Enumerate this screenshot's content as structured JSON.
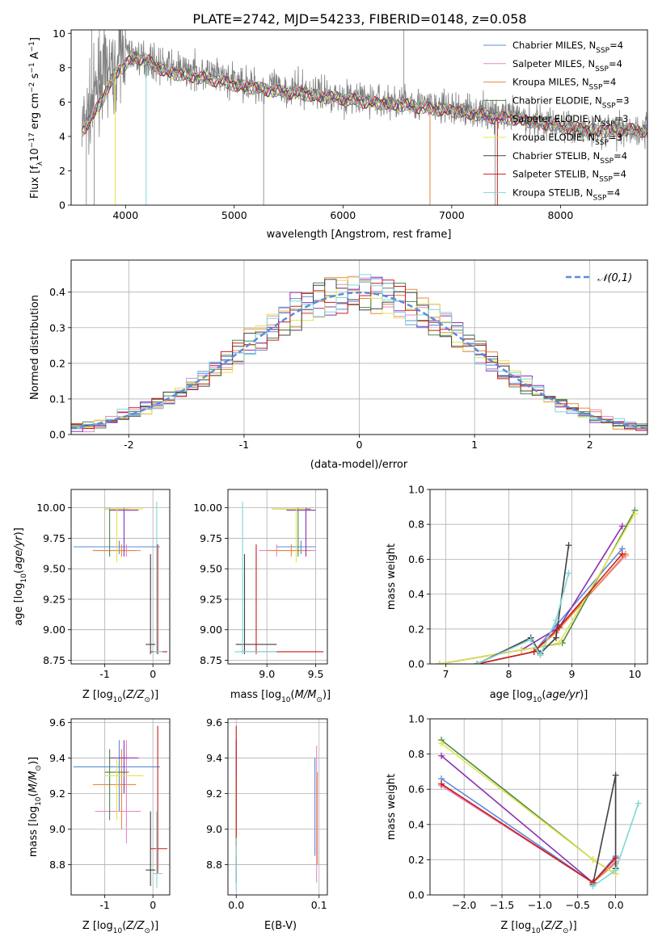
{
  "figure": {
    "title": "PLATE=2742, MJD=54233, FIBERID=0148, z=0.058"
  },
  "chart_data": [
    {
      "id": "spectrum",
      "type": "line",
      "xlabel": "wavelength [Angstrom, rest frame]",
      "ylabel": "Flux [f_λ 10^-17 erg cm^-2 s^-1 A^-1]",
      "xlim": [
        3500,
        8800
      ],
      "ylim": [
        0,
        10.2
      ],
      "xticks": [
        4000,
        5000,
        6000,
        7000,
        8000
      ],
      "yticks": [
        0,
        2,
        4,
        6,
        8,
        10
      ],
      "grid": false,
      "legend_position": "top-right",
      "observed": {
        "color": "#808080",
        "x": [
          3600,
          3650,
          3700,
          3750,
          3800,
          3850,
          3900,
          3950,
          4000,
          4100,
          4200,
          4300,
          4400,
          4500,
          4600,
          4700,
          4800,
          4900,
          5000,
          5200,
          5400,
          5600,
          5800,
          6000,
          6200,
          6400,
          6600,
          6800,
          7000,
          7200,
          7400,
          7600,
          7800,
          8000,
          8200,
          8400,
          8600,
          8800
        ],
        "y": [
          4.5,
          5.2,
          6.0,
          7.2,
          7.5,
          8.0,
          7.5,
          8.8,
          9.0,
          8.6,
          8.5,
          8.2,
          8.0,
          7.9,
          7.8,
          7.7,
          7.6,
          7.4,
          7.2,
          7.0,
          6.8,
          6.7,
          6.5,
          6.3,
          6.2,
          6.0,
          6.0,
          5.8,
          5.6,
          5.5,
          5.3,
          5.1,
          4.9,
          4.6,
          4.4,
          4.4,
          4.5,
          4.3
        ]
      },
      "model": {
        "x": [
          3600,
          3700,
          3800,
          3900,
          4000,
          4100,
          4200,
          4300,
          4400,
          4500,
          4600,
          4800,
          5000,
          5200,
          5400,
          5600,
          5800,
          6000,
          6200,
          6400,
          6600,
          6800,
          7000,
          7200,
          7400,
          7600,
          7800,
          8000,
          8200,
          8400,
          8600,
          8800
        ],
        "y": [
          4.3,
          5.2,
          6.3,
          7.6,
          8.2,
          8.6,
          8.4,
          8.0,
          7.7,
          7.6,
          7.5,
          7.3,
          7.0,
          6.8,
          6.6,
          6.5,
          6.3,
          6.2,
          6.0,
          5.9,
          5.8,
          5.6,
          5.5,
          5.3,
          5.1,
          5.0,
          4.8,
          4.6,
          4.4,
          4.3,
          4.4,
          4.3
        ]
      },
      "series": [
        {
          "name": "Chabrier MILES, N_SSP=4",
          "color": "#5b8bdc"
        },
        {
          "name": "Salpeter MILES, N_SSP=4",
          "color": "#e986c9"
        },
        {
          "name": "Kroupa MILES, N_SSP=4",
          "color": "#e88a3c"
        },
        {
          "name": "Chabrier ELODIE, N_SSP=3",
          "color": "#4a8a4a"
        },
        {
          "name": "Salpeter ELODIE, N_SSP=3",
          "color": "#8e30b2"
        },
        {
          "name": "Kroupa ELODIE, N_SSP=3",
          "color": "#e4e44c"
        },
        {
          "name": "Chabrier STELIB, N_SSP=4",
          "color": "#404040"
        },
        {
          "name": "Salpeter STELIB, N_SSP=4",
          "color": "#c81e1e"
        },
        {
          "name": "Kroupa STELIB, N_SSP=4",
          "color": "#7fd6d6"
        }
      ]
    },
    {
      "id": "residuals",
      "type": "area",
      "xlabel": "(data-model)/error",
      "ylabel": "Normed distribution",
      "xlim": [
        -2.5,
        2.5
      ],
      "ylim": [
        0,
        0.49
      ],
      "xticks": [
        -2,
        -1,
        0,
        1,
        2
      ],
      "yticks": [
        0.0,
        0.1,
        0.2,
        0.3,
        0.4
      ],
      "grid": true,
      "legend_position": "top-right",
      "legend": "𝒩(0,1)",
      "normal_curve_color": "#5b8bdc"
    },
    {
      "id": "age_vs_Z",
      "type": "scatter",
      "xlabel": "Z [log10(Z/Z⊙)]",
      "ylabel": "age  [log10(age/yr)]",
      "xlim": [
        -1.7,
        0.35
      ],
      "ylim": [
        8.72,
        10.15
      ],
      "xticks": [
        -1,
        0
      ],
      "yticks": [
        8.75,
        9.0,
        9.25,
        9.5,
        9.75,
        10.0
      ],
      "grid": true
    },
    {
      "id": "age_vs_mass",
      "type": "scatter",
      "xlabel": "mass [log10(M/M⊙)]",
      "ylabel": "",
      "xlim": [
        8.6,
        9.62
      ],
      "ylim": [
        8.72,
        10.15
      ],
      "xticks": [
        9.0,
        9.5
      ],
      "yticks": [
        8.75,
        9.0,
        9.25,
        9.5,
        9.75,
        10.0
      ],
      "grid": true
    },
    {
      "id": "weight_vs_age",
      "type": "line",
      "xlabel": "age  [log10(age/yr)]",
      "ylabel": "mass weight",
      "xlim": [
        6.75,
        10.2
      ],
      "ylim": [
        0,
        1.0
      ],
      "xticks": [
        7,
        8,
        9,
        10
      ],
      "yticks": [
        0.0,
        0.2,
        0.4,
        0.6,
        0.8,
        1.0
      ],
      "grid": true
    },
    {
      "id": "mass_vs_Z",
      "type": "scatter",
      "xlabel": "Z [log10(Z/Z⊙)]",
      "ylabel": "mass [log10(M/M⊙)]",
      "xlim": [
        -1.7,
        0.35
      ],
      "ylim": [
        8.63,
        9.62
      ],
      "xticks": [
        -1,
        0
      ],
      "yticks": [
        8.8,
        9.0,
        9.2,
        9.4,
        9.6
      ],
      "grid": true
    },
    {
      "id": "mass_vs_ebv",
      "type": "scatter",
      "xlabel": "E(B-V)",
      "ylabel": "",
      "xlim": [
        -0.01,
        0.11
      ],
      "ylim": [
        8.63,
        9.62
      ],
      "xticks": [
        0.0,
        0.1
      ],
      "yticks": [
        8.8,
        9.0,
        9.2,
        9.4,
        9.6
      ],
      "grid": true
    },
    {
      "id": "weight_vs_Z",
      "type": "line",
      "xlabel": "Z [log10(Z/Z⊙)]",
      "ylabel": "mass weight",
      "xlim": [
        -2.45,
        0.42
      ],
      "ylim": [
        0,
        1.0
      ],
      "xticks": [
        -2.0,
        -1.5,
        -1.0,
        -0.5,
        0.0
      ],
      "yticks": [
        0.0,
        0.2,
        0.4,
        0.6,
        0.8,
        1.0
      ],
      "grid": true
    }
  ],
  "ssp_results": [
    {
      "name": "Chabrier MILES",
      "color": "#5b8bdc",
      "Z": -0.7,
      "Z_err": [
        -1.65,
        0.15
      ],
      "age": 9.68,
      "age_err": [
        9.62,
        9.73
      ],
      "mass": 9.35,
      "mass_err": [
        9.1,
        9.5
      ],
      "ebv": 0.095,
      "ebv_err": [
        8.85,
        9.4
      ],
      "w_age": [
        [
          7.5,
          0.0
        ],
        [
          8.4,
          0.07
        ],
        [
          8.75,
          0.22
        ],
        [
          9.8,
          0.66
        ]
      ],
      "w_Z": [
        [
          -2.3,
          0.66
        ],
        [
          -0.3,
          0.07
        ],
        [
          0.0,
          0.22
        ],
        [
          -0.3,
          0.07
        ]
      ]
    },
    {
      "name": "Salpeter MILES",
      "color": "#e986c9",
      "Z": -0.55,
      "Z_err": [
        -1.2,
        -0.25
      ],
      "age": 9.65,
      "age_err": [
        9.6,
        9.7
      ],
      "mass": 9.1,
      "mass_err": [
        8.92,
        9.5
      ],
      "ebv": 0.097,
      "ebv_err": [
        8.7,
        9.47
      ],
      "w_age": [
        [
          7.5,
          0.0
        ],
        [
          8.4,
          0.07
        ],
        [
          8.75,
          0.19
        ],
        [
          9.85,
          0.62
        ]
      ],
      "w_Z": [
        [
          -2.3,
          0.62
        ],
        [
          -0.3,
          0.07
        ],
        [
          0.0,
          0.19
        ],
        [
          -0.3,
          0.07
        ]
      ]
    },
    {
      "name": "Kroupa MILES",
      "color": "#e88a3c",
      "Z": -0.65,
      "Z_err": [
        -1.25,
        -0.35
      ],
      "age": 9.65,
      "age_err": [
        9.6,
        9.7
      ],
      "mass": 9.25,
      "mass_err": [
        9.0,
        9.45
      ],
      "ebv": 0.098,
      "ebv_err": [
        8.8,
        9.32
      ],
      "w_age": [
        [
          7.5,
          0.0
        ],
        [
          8.4,
          0.07
        ],
        [
          8.75,
          0.18
        ],
        [
          9.85,
          0.63
        ]
      ],
      "w_Z": [
        [
          -2.3,
          0.63
        ],
        [
          -0.3,
          0.07
        ],
        [
          0.0,
          0.18
        ],
        [
          -0.3,
          0.07
        ]
      ]
    },
    {
      "name": "Chabrier ELODIE",
      "color": "#4a8a4a",
      "Z": -0.9,
      "Z_err": [
        -1.0,
        -0.5
      ],
      "age": 9.99,
      "age_err": [
        9.6,
        10.0
      ],
      "mass": 9.32,
      "mass_err": [
        9.05,
        9.45
      ],
      "ebv": 0.0,
      "ebv_err": [
        8.85,
        9.3
      ],
      "w_age": [
        [
          6.9,
          0.0
        ],
        [
          8.2,
          0.08
        ],
        [
          8.85,
          0.12
        ],
        [
          10.0,
          0.88
        ]
      ],
      "w_Z": [
        [
          -2.3,
          0.88
        ],
        [
          -0.3,
          0.2
        ],
        [
          0.0,
          0.12
        ]
      ]
    },
    {
      "name": "Salpeter ELODIE",
      "color": "#8e30b2",
      "Z": -0.6,
      "Z_err": [
        -0.9,
        -0.3
      ],
      "age": 9.98,
      "age_err": [
        9.6,
        10.0
      ],
      "mass": 9.4,
      "mass_err": [
        9.2,
        9.5
      ],
      "ebv": 0.0,
      "ebv_err": [
        8.9,
        9.5
      ],
      "w_age": [
        [
          6.9,
          0.0
        ],
        [
          8.2,
          0.08
        ],
        [
          8.8,
          0.21
        ],
        [
          9.8,
          0.79
        ]
      ],
      "w_Z": [
        [
          -2.3,
          0.79
        ],
        [
          -0.3,
          0.07
        ],
        [
          0.0,
          0.21
        ]
      ]
    },
    {
      "name": "Kroupa ELODIE",
      "color": "#e4e44c",
      "Z": -0.75,
      "Z_err": [
        -1.0,
        -0.2
      ],
      "age": 9.99,
      "age_err": [
        9.55,
        10.0
      ],
      "mass": 9.3,
      "mass_err": [
        9.05,
        9.4
      ],
      "ebv": 0.0,
      "ebv_err": [
        8.85,
        9.3
      ],
      "w_age": [
        [
          6.9,
          0.0
        ],
        [
          8.2,
          0.08
        ],
        [
          8.8,
          0.12
        ],
        [
          10.0,
          0.86
        ]
      ],
      "w_Z": [
        [
          -2.3,
          0.86
        ],
        [
          -0.3,
          0.2
        ],
        [
          0.0,
          0.12
        ]
      ]
    },
    {
      "name": "Chabrier STELIB",
      "color": "#404040",
      "Z": -0.05,
      "Z_err": [
        -0.15,
        0.05
      ],
      "age": 8.88,
      "age_err": [
        8.8,
        9.62
      ],
      "mass": 8.77,
      "mass_err": [
        8.68,
        9.1
      ],
      "ebv": 0.0,
      "ebv_err": [
        8.7,
        8.85
      ],
      "w_age": [
        [
          7.5,
          0.0
        ],
        [
          8.35,
          0.15
        ],
        [
          8.5,
          0.06
        ],
        [
          8.75,
          0.15
        ],
        [
          8.95,
          0.68
        ]
      ],
      "w_Z": [
        [
          -0.3,
          0.06
        ],
        [
          0.0,
          0.68
        ],
        [
          0.0,
          0.15
        ]
      ]
    },
    {
      "name": "Salpeter STELIB",
      "color": "#c81e1e",
      "Z": 0.1,
      "Z_err": [
        -0.05,
        0.3
      ],
      "age": 8.82,
      "age_err": [
        8.8,
        9.7
      ],
      "mass": 8.89,
      "mass_err": [
        8.75,
        9.58
      ],
      "ebv": 0.0,
      "ebv_err": [
        8.9,
        9.58
      ],
      "w_age": [
        [
          7.5,
          0.0
        ],
        [
          8.4,
          0.07
        ],
        [
          8.8,
          0.21
        ],
        [
          9.8,
          0.63
        ]
      ],
      "w_Z": [
        [
          -2.3,
          0.63
        ],
        [
          -0.3,
          0.07
        ],
        [
          0.0,
          0.21
        ]
      ]
    },
    {
      "name": "Kroupa STELIB",
      "color": "#7fd6d6",
      "Z": 0.08,
      "Z_err": [
        0.0,
        0.2
      ],
      "age": 8.82,
      "age_err": [
        8.8,
        10.05
      ],
      "mass": 8.75,
      "mass_err": [
        8.67,
        9.1
      ],
      "ebv": 0.0,
      "ebv_err": [
        8.65,
        8.95
      ],
      "w_age": [
        [
          7.5,
          0.0
        ],
        [
          8.35,
          0.14
        ],
        [
          8.5,
          0.05
        ],
        [
          8.75,
          0.25
        ],
        [
          8.95,
          0.52
        ]
      ],
      "w_Z": [
        [
          -0.3,
          0.05
        ],
        [
          0.0,
          0.14
        ],
        [
          0.3,
          0.52
        ]
      ]
    }
  ]
}
